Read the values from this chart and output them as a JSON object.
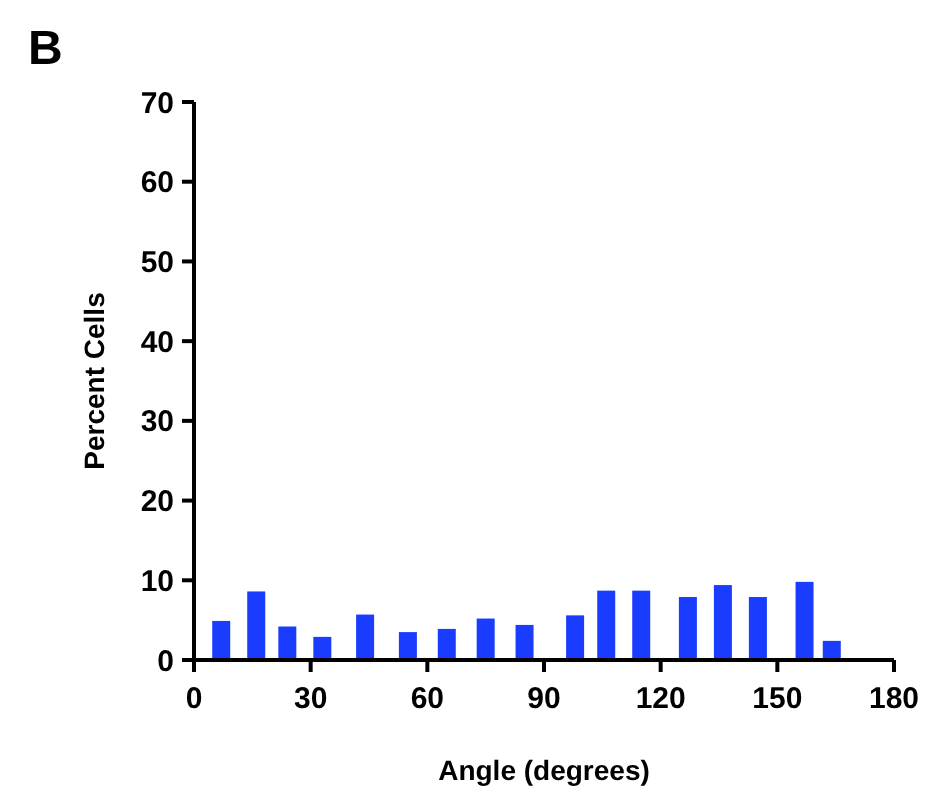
{
  "chart_data": {
    "type": "bar",
    "title": "B",
    "xlabel": "Angle (degrees)",
    "ylabel": "Percent Cells",
    "x": [
      7,
      16,
      24,
      33,
      44,
      55,
      65,
      75,
      85,
      98,
      106,
      115,
      127,
      136,
      145,
      157,
      164
    ],
    "values": [
      4.9,
      8.6,
      4.2,
      2.9,
      5.7,
      3.5,
      3.9,
      5.2,
      4.4,
      5.6,
      8.7,
      8.7,
      7.9,
      9.4,
      7.9,
      9.8,
      2.4
    ],
    "color": "#1a3cff",
    "xlim": [
      0,
      180
    ],
    "xticks": [
      0,
      30,
      60,
      90,
      120,
      150,
      180
    ],
    "ylim": [
      0,
      70
    ],
    "yticks": [
      0,
      10,
      20,
      30,
      40,
      50,
      60,
      70
    ]
  }
}
